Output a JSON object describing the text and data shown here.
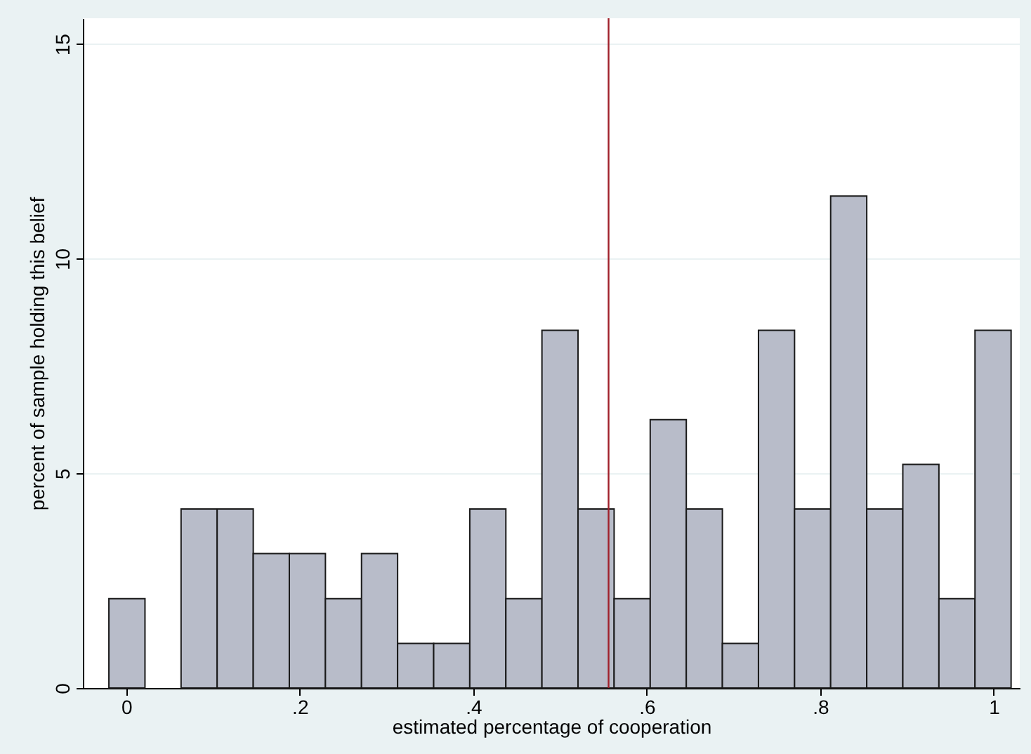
{
  "chart_data": {
    "type": "histogram",
    "xlabel": "estimated percentage of cooperation",
    "ylabel": "percent of sample holding this belief",
    "bins": [
      -0.02,
      0.0216,
      0.0632,
      0.1048,
      0.1464,
      0.188,
      0.2296,
      0.2712,
      0.3128,
      0.3544,
      0.396,
      0.4376,
      0.4792,
      0.5208,
      0.5624,
      0.604,
      0.6456,
      0.6872,
      0.7288,
      0.7704,
      0.812,
      0.8536,
      0.8952,
      0.9368,
      0.9784,
      1.02
    ],
    "values": [
      2.08,
      0,
      4.17,
      4.17,
      3.13,
      3.13,
      2.08,
      3.13,
      1.04,
      1.04,
      4.17,
      2.08,
      8.33,
      4.17,
      2.08,
      6.25,
      4.17,
      1.04,
      8.33,
      4.17,
      11.46,
      4.17,
      5.21,
      2.08,
      8.33
    ],
    "color": "#b8bcc9",
    "xlim": [
      -0.05,
      1.03
    ],
    "ylim": [
      0,
      15.6
    ],
    "xticks": [
      0,
      {
        "value": 0.2,
        "label": ".2"
      },
      {
        "value": 0.4,
        "label": ".4"
      },
      {
        "value": 0.6,
        "label": ".6"
      },
      {
        "value": 0.8,
        "label": ".8"
      },
      1
    ],
    "yticks": [
      0,
      5,
      10,
      15
    ],
    "grid": "y",
    "ref_lines": [
      {
        "axis": "x",
        "value": 0.556,
        "color": "#a0202a"
      }
    ]
  }
}
